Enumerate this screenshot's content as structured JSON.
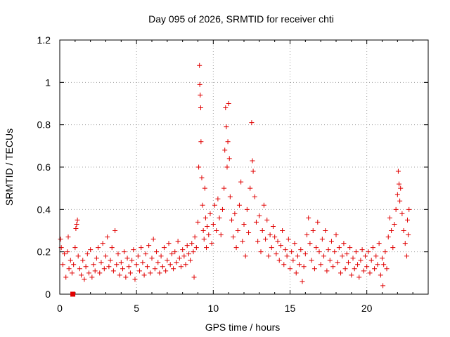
{
  "chart_data": {
    "type": "scatter",
    "title": "Day 095 of 2026, SRMTID for receiver chti",
    "xlabel": "GPS time / hours",
    "ylabel": "SRMTID / TECUs",
    "xlim": [
      0,
      24
    ],
    "ylim": [
      0,
      1.2
    ],
    "xticks": [
      "0",
      "5",
      "10",
      "15",
      "20"
    ],
    "xtick_values": [
      0,
      5,
      10,
      15,
      20
    ],
    "yticks": [
      "0",
      "0.2",
      "0.4",
      "0.6",
      "0.8",
      "1",
      "1.2"
    ],
    "ytick_values": [
      0,
      0.2,
      0.4,
      0.6,
      0.8,
      1.0,
      1.2
    ],
    "grid": true,
    "marker": "+",
    "marker_color": "#e00000",
    "extra_marker": {
      "shape": "square",
      "x": 0.85,
      "y": 0.0
    },
    "series": [
      {
        "name": "SRMTID",
        "points": [
          [
            0.05,
            0.26
          ],
          [
            0.1,
            0.22
          ],
          [
            0.2,
            0.14
          ],
          [
            0.3,
            0.19
          ],
          [
            0.4,
            0.08
          ],
          [
            0.5,
            0.2
          ],
          [
            0.55,
            0.27
          ],
          [
            0.6,
            0.12
          ],
          [
            0.7,
            0.16
          ],
          [
            0.8,
            0.1
          ],
          [
            0.9,
            0.14
          ],
          [
            1.0,
            0.22
          ],
          [
            1.05,
            0.31
          ],
          [
            1.1,
            0.33
          ],
          [
            1.15,
            0.35
          ],
          [
            1.2,
            0.18
          ],
          [
            1.3,
            0.12
          ],
          [
            1.4,
            0.09
          ],
          [
            1.5,
            0.16
          ],
          [
            1.6,
            0.07
          ],
          [
            1.7,
            0.13
          ],
          [
            1.8,
            0.19
          ],
          [
            1.9,
            0.1
          ],
          [
            2.0,
            0.21
          ],
          [
            2.1,
            0.08
          ],
          [
            2.2,
            0.14
          ],
          [
            2.3,
            0.11
          ],
          [
            2.4,
            0.17
          ],
          [
            2.5,
            0.22
          ],
          [
            2.6,
            0.1
          ],
          [
            2.7,
            0.15
          ],
          [
            2.8,
            0.24
          ],
          [
            2.9,
            0.12
          ],
          [
            3.0,
            0.18
          ],
          [
            3.1,
            0.27
          ],
          [
            3.2,
            0.13
          ],
          [
            3.3,
            0.16
          ],
          [
            3.4,
            0.22
          ],
          [
            3.5,
            0.11
          ],
          [
            3.6,
            0.3
          ],
          [
            3.7,
            0.14
          ],
          [
            3.8,
            0.19
          ],
          [
            3.9,
            0.09
          ],
          [
            4.0,
            0.15
          ],
          [
            4.1,
            0.12
          ],
          [
            4.2,
            0.2
          ],
          [
            4.3,
            0.08
          ],
          [
            4.4,
            0.17
          ],
          [
            4.5,
            0.13
          ],
          [
            4.6,
            0.1
          ],
          [
            4.7,
            0.16
          ],
          [
            4.8,
            0.21
          ],
          [
            4.9,
            0.07
          ],
          [
            5.0,
            0.14
          ],
          [
            5.1,
            0.18
          ],
          [
            5.2,
            0.11
          ],
          [
            5.3,
            0.22
          ],
          [
            5.4,
            0.15
          ],
          [
            5.5,
            0.09
          ],
          [
            5.6,
            0.19
          ],
          [
            5.7,
            0.13
          ],
          [
            5.8,
            0.23
          ],
          [
            5.9,
            0.1
          ],
          [
            6.0,
            0.17
          ],
          [
            6.1,
            0.26
          ],
          [
            6.2,
            0.12
          ],
          [
            6.3,
            0.2
          ],
          [
            6.4,
            0.15
          ],
          [
            6.5,
            0.1
          ],
          [
            6.6,
            0.18
          ],
          [
            6.7,
            0.13
          ],
          [
            6.8,
            0.22
          ],
          [
            6.9,
            0.11
          ],
          [
            7.0,
            0.16
          ],
          [
            7.1,
            0.24
          ],
          [
            7.2,
            0.14
          ],
          [
            7.3,
            0.19
          ],
          [
            7.4,
            0.12
          ],
          [
            7.5,
            0.2
          ],
          [
            7.6,
            0.15
          ],
          [
            7.7,
            0.25
          ],
          [
            7.8,
            0.17
          ],
          [
            7.9,
            0.13
          ],
          [
            8.0,
            0.21
          ],
          [
            8.1,
            0.18
          ],
          [
            8.2,
            0.14
          ],
          [
            8.3,
            0.23
          ],
          [
            8.4,
            0.19
          ],
          [
            8.5,
            0.16
          ],
          [
            8.6,
            0.24
          ],
          [
            8.7,
            0.2
          ],
          [
            8.75,
            0.08
          ],
          [
            8.8,
            0.27
          ],
          [
            8.9,
            0.22
          ],
          [
            9.0,
            0.34
          ],
          [
            9.05,
            0.6
          ],
          [
            9.1,
            1.08
          ],
          [
            9.12,
            0.99
          ],
          [
            9.15,
            0.94
          ],
          [
            9.18,
            0.88
          ],
          [
            9.2,
            0.72
          ],
          [
            9.25,
            0.55
          ],
          [
            9.3,
            0.42
          ],
          [
            9.35,
            0.3
          ],
          [
            9.4,
            0.26
          ],
          [
            9.45,
            0.5
          ],
          [
            9.5,
            0.36
          ],
          [
            9.55,
            0.22
          ],
          [
            9.6,
            0.32
          ],
          [
            9.7,
            0.28
          ],
          [
            9.8,
            0.38
          ],
          [
            9.9,
            0.24
          ],
          [
            10.0,
            0.33
          ],
          [
            10.1,
            0.42
          ],
          [
            10.2,
            0.3
          ],
          [
            10.3,
            0.45
          ],
          [
            10.4,
            0.36
          ],
          [
            10.5,
            0.28
          ],
          [
            10.6,
            0.4
          ],
          [
            10.7,
            0.5
          ],
          [
            10.75,
            0.68
          ],
          [
            10.8,
            0.88
          ],
          [
            10.85,
            0.79
          ],
          [
            10.9,
            0.6
          ],
          [
            10.95,
            0.72
          ],
          [
            11.0,
            0.9
          ],
          [
            11.05,
            0.64
          ],
          [
            11.1,
            0.46
          ],
          [
            11.2,
            0.35
          ],
          [
            11.3,
            0.27
          ],
          [
            11.4,
            0.38
          ],
          [
            11.5,
            0.22
          ],
          [
            11.6,
            0.3
          ],
          [
            11.7,
            0.42
          ],
          [
            11.8,
            0.53
          ],
          [
            11.9,
            0.25
          ],
          [
            12.0,
            0.33
          ],
          [
            12.1,
            0.18
          ],
          [
            12.2,
            0.4
          ],
          [
            12.3,
            0.29
          ],
          [
            12.4,
            0.5
          ],
          [
            12.5,
            0.81
          ],
          [
            12.55,
            0.63
          ],
          [
            12.6,
            0.58
          ],
          [
            12.7,
            0.46
          ],
          [
            12.8,
            0.34
          ],
          [
            12.9,
            0.25
          ],
          [
            13.0,
            0.37
          ],
          [
            13.1,
            0.2
          ],
          [
            13.2,
            0.3
          ],
          [
            13.3,
            0.42
          ],
          [
            13.4,
            0.26
          ],
          [
            13.5,
            0.35
          ],
          [
            13.6,
            0.18
          ],
          [
            13.7,
            0.28
          ],
          [
            13.8,
            0.22
          ],
          [
            13.9,
            0.32
          ],
          [
            14.0,
            0.27
          ],
          [
            14.1,
            0.19
          ],
          [
            14.2,
            0.25
          ],
          [
            14.3,
            0.16
          ],
          [
            14.4,
            0.23
          ],
          [
            14.5,
            0.3
          ],
          [
            14.6,
            0.14
          ],
          [
            14.7,
            0.21
          ],
          [
            14.8,
            0.18
          ],
          [
            14.9,
            0.26
          ],
          [
            15.0,
            0.12
          ],
          [
            15.1,
            0.2
          ],
          [
            15.2,
            0.16
          ],
          [
            15.3,
            0.24
          ],
          [
            15.4,
            0.1
          ],
          [
            15.5,
            0.18
          ],
          [
            15.6,
            0.14
          ],
          [
            15.7,
            0.21
          ],
          [
            15.8,
            0.06
          ],
          [
            15.9,
            0.13
          ],
          [
            16.0,
            0.19
          ],
          [
            16.1,
            0.28
          ],
          [
            16.2,
            0.36
          ],
          [
            16.3,
            0.24
          ],
          [
            16.4,
            0.16
          ],
          [
            16.5,
            0.3
          ],
          [
            16.6,
            0.12
          ],
          [
            16.7,
            0.22
          ],
          [
            16.8,
            0.34
          ],
          [
            16.9,
            0.2
          ],
          [
            17.0,
            0.14
          ],
          [
            17.1,
            0.26
          ],
          [
            17.2,
            0.18
          ],
          [
            17.3,
            0.3
          ],
          [
            17.4,
            0.11
          ],
          [
            17.5,
            0.21
          ],
          [
            17.6,
            0.16
          ],
          [
            17.7,
            0.25
          ],
          [
            17.8,
            0.13
          ],
          [
            17.9,
            0.2
          ],
          [
            18.0,
            0.28
          ],
          [
            18.1,
            0.15
          ],
          [
            18.2,
            0.22
          ],
          [
            18.3,
            0.1
          ],
          [
            18.4,
            0.18
          ],
          [
            18.5,
            0.24
          ],
          [
            18.6,
            0.12
          ],
          [
            18.7,
            0.19
          ],
          [
            18.8,
            0.15
          ],
          [
            18.9,
            0.22
          ],
          [
            19.0,
            0.09
          ],
          [
            19.1,
            0.17
          ],
          [
            19.2,
            0.12
          ],
          [
            19.3,
            0.2
          ],
          [
            19.4,
            0.14
          ],
          [
            19.5,
            0.08
          ],
          [
            19.6,
            0.16
          ],
          [
            19.7,
            0.21
          ],
          [
            19.8,
            0.11
          ],
          [
            19.9,
            0.18
          ],
          [
            20.0,
            0.13
          ],
          [
            20.1,
            0.2
          ],
          [
            20.2,
            0.1
          ],
          [
            20.3,
            0.16
          ],
          [
            20.4,
            0.22
          ],
          [
            20.5,
            0.12
          ],
          [
            20.6,
            0.18
          ],
          [
            20.7,
            0.14
          ],
          [
            20.8,
            0.24
          ],
          [
            20.9,
            0.09
          ],
          [
            21.0,
            0.17
          ],
          [
            21.05,
            0.04
          ],
          [
            21.1,
            0.14
          ],
          [
            21.2,
            0.2
          ],
          [
            21.3,
            0.12
          ],
          [
            21.4,
            0.27
          ],
          [
            21.5,
            0.36
          ],
          [
            21.6,
            0.3
          ],
          [
            21.7,
            0.22
          ],
          [
            21.8,
            0.33
          ],
          [
            21.9,
            0.4
          ],
          [
            22.0,
            0.47
          ],
          [
            22.05,
            0.58
          ],
          [
            22.1,
            0.52
          ],
          [
            22.15,
            0.44
          ],
          [
            22.2,
            0.5
          ],
          [
            22.3,
            0.38
          ],
          [
            22.4,
            0.3
          ],
          [
            22.5,
            0.24
          ],
          [
            22.6,
            0.18
          ],
          [
            22.65,
            0.35
          ],
          [
            22.7,
            0.28
          ],
          [
            22.75,
            0.4
          ]
        ]
      }
    ]
  }
}
